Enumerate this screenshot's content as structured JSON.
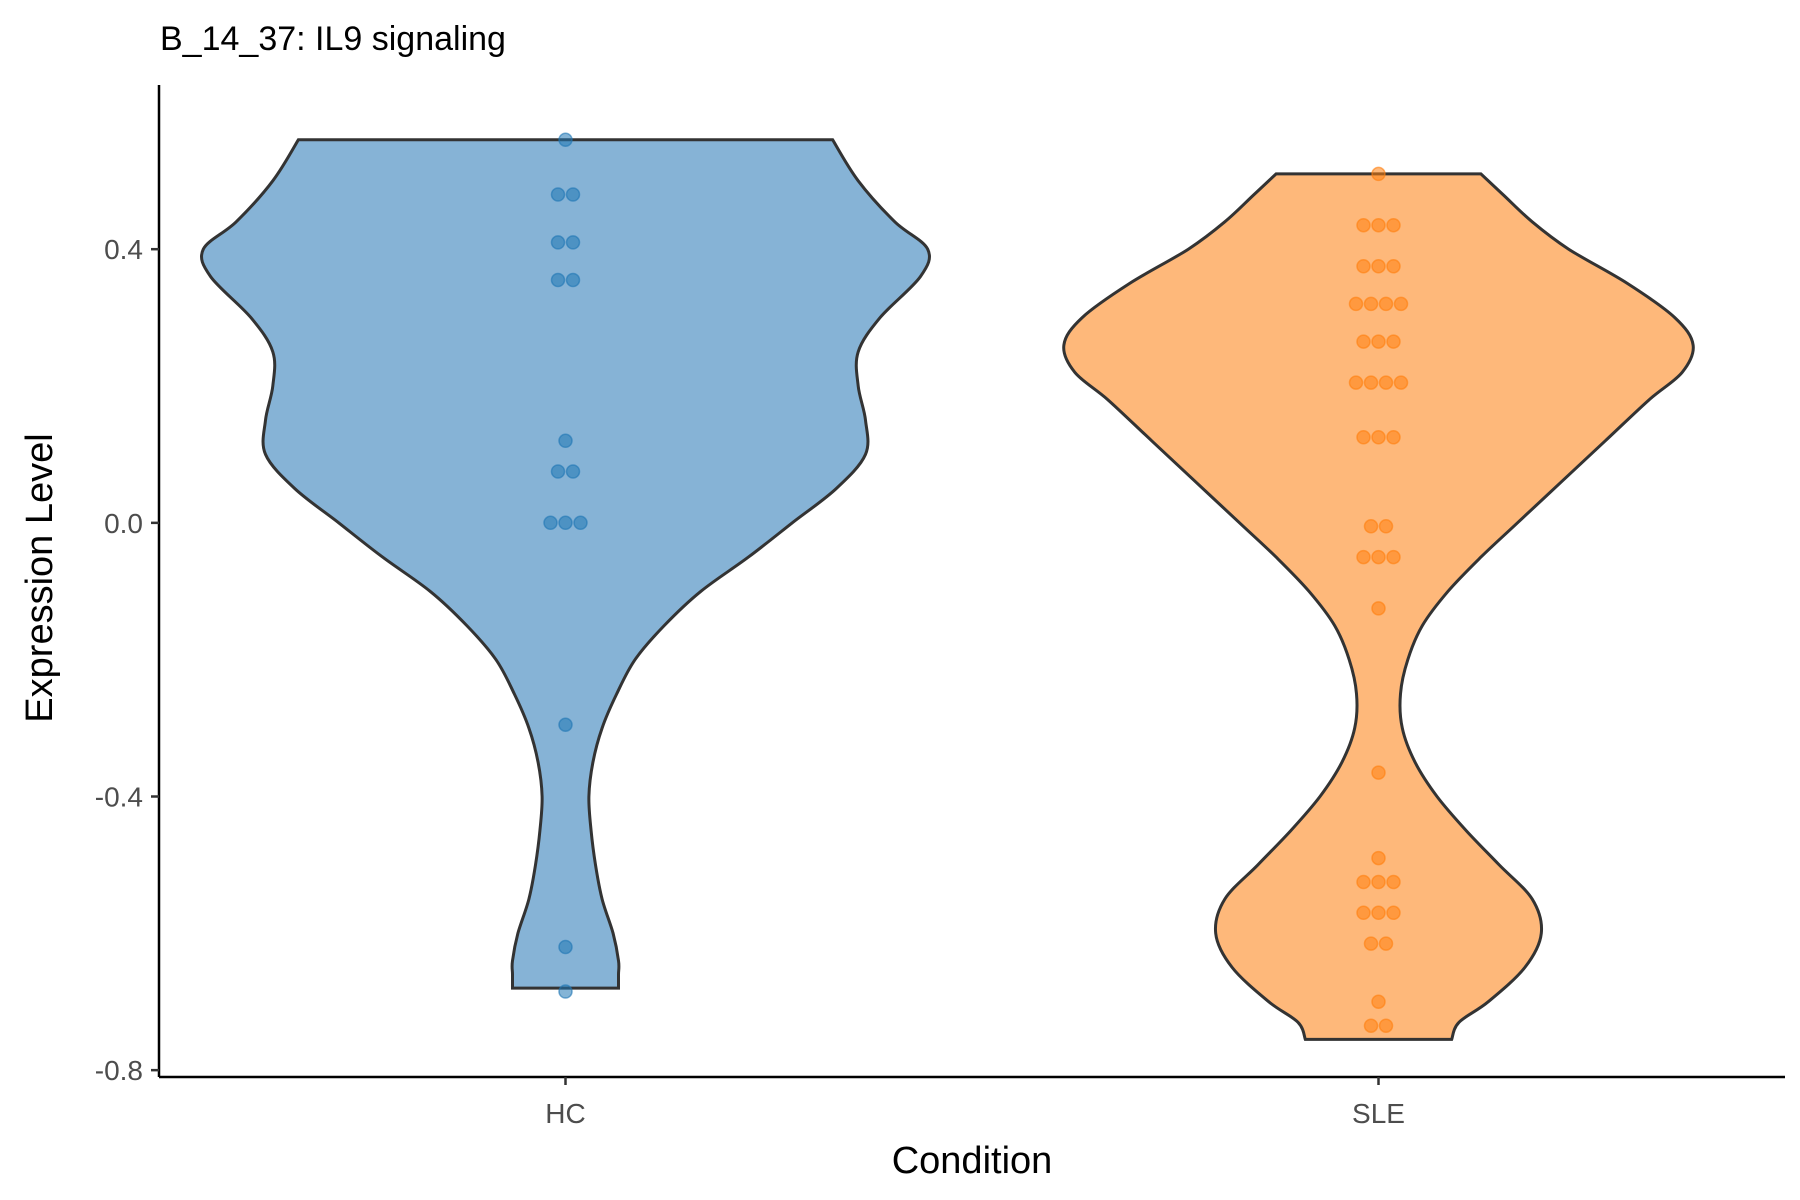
{
  "chart_data": {
    "type": "violin",
    "title": "B_14_37: IL9 signaling",
    "xlabel": "Condition",
    "ylabel": "Expression Level",
    "ylim": [
      -0.81,
      0.64
    ],
    "yticks": [
      0.4,
      0.0,
      -0.4,
      -0.8
    ],
    "ytick_labels": [
      "0.4",
      "0.0",
      "-0.4",
      "-0.8"
    ],
    "categories": [
      "HC",
      "SLE"
    ],
    "grid": false,
    "legend": "none",
    "series": [
      {
        "category": "HC",
        "color": "#1f77b4",
        "fill": "#86b3d6",
        "range": [
          -0.68,
          0.56
        ],
        "density": [
          [
            0.56,
            0.73
          ],
          [
            0.5,
            0.8
          ],
          [
            0.44,
            0.9
          ],
          [
            0.4,
            0.99
          ],
          [
            0.36,
            0.97
          ],
          [
            0.3,
            0.86
          ],
          [
            0.25,
            0.8
          ],
          [
            0.2,
            0.8
          ],
          [
            0.15,
            0.82
          ],
          [
            0.1,
            0.82
          ],
          [
            0.05,
            0.74
          ],
          [
            0.0,
            0.62
          ],
          [
            -0.05,
            0.5
          ],
          [
            -0.1,
            0.37
          ],
          [
            -0.15,
            0.27
          ],
          [
            -0.2,
            0.19
          ],
          [
            -0.25,
            0.14
          ],
          [
            -0.3,
            0.1
          ],
          [
            -0.35,
            0.075
          ],
          [
            -0.4,
            0.064
          ],
          [
            -0.45,
            0.07
          ],
          [
            -0.5,
            0.082
          ],
          [
            -0.55,
            0.1
          ],
          [
            -0.6,
            0.13
          ],
          [
            -0.64,
            0.145
          ],
          [
            -0.66,
            0.145
          ],
          [
            -0.68,
            0.145
          ]
        ],
        "points": [
          0.56,
          0.48,
          0.48,
          0.41,
          0.41,
          0.355,
          0.355,
          0.12,
          0.075,
          0.075,
          0.0,
          0.0,
          0.0,
          -0.295,
          -0.62,
          -0.685
        ]
      },
      {
        "category": "SLE",
        "color": "#ff7f0e",
        "fill": "#feb87a",
        "range": [
          -0.755,
          0.51
        ],
        "density": [
          [
            0.51,
            0.28
          ],
          [
            0.48,
            0.34
          ],
          [
            0.44,
            0.42
          ],
          [
            0.4,
            0.52
          ],
          [
            0.35,
            0.68
          ],
          [
            0.3,
            0.81
          ],
          [
            0.26,
            0.86
          ],
          [
            0.22,
            0.83
          ],
          [
            0.18,
            0.74
          ],
          [
            0.12,
            0.62
          ],
          [
            0.06,
            0.5
          ],
          [
            0.0,
            0.38
          ],
          [
            -0.05,
            0.28
          ],
          [
            -0.1,
            0.19
          ],
          [
            -0.15,
            0.12
          ],
          [
            -0.2,
            0.08
          ],
          [
            -0.25,
            0.06
          ],
          [
            -0.3,
            0.065
          ],
          [
            -0.35,
            0.1
          ],
          [
            -0.4,
            0.16
          ],
          [
            -0.45,
            0.24
          ],
          [
            -0.5,
            0.33
          ],
          [
            -0.55,
            0.42
          ],
          [
            -0.6,
            0.445
          ],
          [
            -0.65,
            0.4
          ],
          [
            -0.7,
            0.3
          ],
          [
            -0.73,
            0.22
          ],
          [
            -0.755,
            0.2
          ]
        ],
        "points": [
          0.51,
          0.435,
          0.435,
          0.435,
          0.375,
          0.375,
          0.375,
          0.32,
          0.32,
          0.32,
          0.32,
          0.265,
          0.265,
          0.265,
          0.205,
          0.205,
          0.205,
          0.205,
          0.125,
          0.125,
          0.125,
          -0.005,
          -0.005,
          -0.05,
          -0.05,
          -0.05,
          -0.125,
          -0.365,
          -0.49,
          -0.525,
          -0.525,
          -0.525,
          -0.57,
          -0.57,
          -0.57,
          -0.615,
          -0.615,
          -0.7,
          -0.735,
          -0.735
        ]
      }
    ]
  }
}
